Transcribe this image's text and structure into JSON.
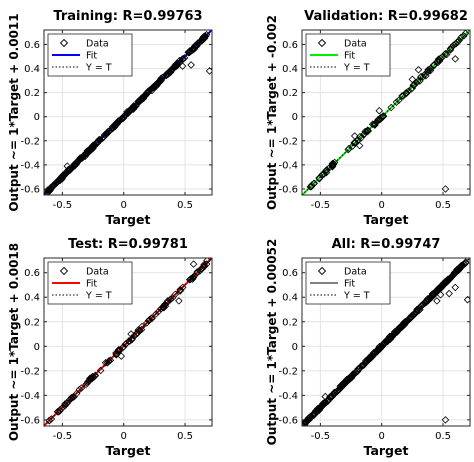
{
  "panels": [
    {
      "title": "Training: R=0.99763",
      "ylabel": "Output ~= 1*Target + 0.0011",
      "fit_color": "#0000ff",
      "fit": {
        "slope": 1,
        "intercept": 0.0011
      },
      "legend": [
        "Data",
        "Fit",
        "Y = T"
      ],
      "xlabel": "Target"
    },
    {
      "title": "Validation: R=0.99682",
      "ylabel": "Output ~= 1*Target + -0.002",
      "fit_color": "#00ee00",
      "fit": {
        "slope": 1,
        "intercept": -0.002
      },
      "legend": [
        "Data",
        "Fit",
        "Y = T"
      ],
      "xlabel": "Target"
    },
    {
      "title": "Test: R=0.99781",
      "ylabel": "Output ~= 1*Target + 0.0018",
      "fit_color": "#ff0000",
      "fit": {
        "slope": 1,
        "intercept": 0.0018
      },
      "legend": [
        "Data",
        "Fit",
        "Y = T"
      ],
      "xlabel": "Target"
    },
    {
      "title": "All: R=0.99747",
      "ylabel": "Output ~= 1*Target + 0.00052",
      "fit_color": "#808080",
      "fit": {
        "slope": 1,
        "intercept": 0.00052
      },
      "legend": [
        "Data",
        "Fit",
        "Y = T"
      ],
      "xlabel": "Target"
    }
  ],
  "chart_data": [
    {
      "type": "scatter",
      "title": "Training: R=0.99763",
      "xlabel": "Target",
      "ylabel": "Output ~= 1*Target + 0.0011",
      "xlim": [
        -0.65,
        0.72
      ],
      "ylim": [
        -0.65,
        0.72
      ],
      "xticks": [
        -0.5,
        0,
        0.5
      ],
      "yticks": [
        -0.6,
        -0.4,
        -0.2,
        0,
        0.2,
        0.4,
        0.6
      ],
      "legend_position": "top-left",
      "series": [
        {
          "name": "Data",
          "marker": "diamond",
          "density": 300,
          "outliers": [
            [
              0.48,
              0.42
            ],
            [
              0.55,
              0.43
            ],
            [
              0.7,
              0.38
            ],
            [
              -0.46,
              -0.41
            ]
          ]
        },
        {
          "name": "Fit",
          "slope": 1,
          "intercept": 0.0011,
          "color": "#0000ff"
        },
        {
          "name": "Y = T",
          "slope": 1,
          "intercept": 0,
          "style": "dotted"
        }
      ]
    },
    {
      "type": "scatter",
      "title": "Validation: R=0.99682",
      "xlabel": "Target",
      "ylabel": "Output ~= 1*Target + -0.002",
      "xlim": [
        -0.65,
        0.72
      ],
      "ylim": [
        -0.65,
        0.72
      ],
      "xticks": [
        -0.5,
        0,
        0.5
      ],
      "yticks": [
        -0.6,
        -0.4,
        -0.2,
        0,
        0.2,
        0.4,
        0.6
      ],
      "legend_position": "top-left",
      "series": [
        {
          "name": "Data",
          "marker": "diamond",
          "density": 110,
          "outliers": [
            [
              0.3,
              0.39
            ],
            [
              0.36,
              0.34
            ],
            [
              0.6,
              0.48
            ],
            [
              0.25,
              0.31
            ],
            [
              -0.02,
              0.05
            ],
            [
              -0.18,
              -0.24
            ],
            [
              -0.22,
              -0.16
            ],
            [
              0.52,
              -0.6
            ]
          ]
        },
        {
          "name": "Fit",
          "slope": 1,
          "intercept": -0.002,
          "color": "#00ee00"
        },
        {
          "name": "Y = T",
          "slope": 1,
          "intercept": 0,
          "style": "dotted"
        }
      ]
    },
    {
      "type": "scatter",
      "title": "Test: R=0.99781",
      "xlabel": "Target",
      "ylabel": "Output ~= 1*Target + 0.0018",
      "xlim": [
        -0.65,
        0.72
      ],
      "ylim": [
        -0.65,
        0.72
      ],
      "xticks": [
        -0.5,
        0,
        0.5
      ],
      "yticks": [
        -0.6,
        -0.4,
        -0.2,
        0,
        0.2,
        0.4,
        0.6
      ],
      "legend_position": "top-left",
      "series": [
        {
          "name": "Data",
          "marker": "diamond",
          "density": 110,
          "outliers": [
            [
              0.57,
              0.67
            ],
            [
              0.68,
              0.7
            ],
            [
              0.45,
              0.37
            ],
            [
              -0.12,
              -0.12
            ],
            [
              0.06,
              0.1
            ],
            [
              -0.02,
              -0.08
            ]
          ]
        },
        {
          "name": "Fit",
          "slope": 1,
          "intercept": 0.0018,
          "color": "#ff0000"
        },
        {
          "name": "Y = T",
          "slope": 1,
          "intercept": 0,
          "style": "dotted"
        }
      ]
    },
    {
      "type": "scatter",
      "title": "All: R=0.99747",
      "xlabel": "Target",
      "ylabel": "Output ~= 1*Target + 0.00052",
      "xlim": [
        -0.65,
        0.72
      ],
      "ylim": [
        -0.65,
        0.72
      ],
      "xticks": [
        -0.5,
        0,
        0.5
      ],
      "yticks": [
        -0.6,
        -0.4,
        -0.2,
        0,
        0.2,
        0.4,
        0.6
      ],
      "legend_position": "top-left",
      "series": [
        {
          "name": "Data",
          "marker": "diamond",
          "density": 380,
          "outliers": [
            [
              0.48,
              0.42
            ],
            [
              0.55,
              0.43
            ],
            [
              0.7,
              0.38
            ],
            [
              0.6,
              0.48
            ],
            [
              0.52,
              -0.6
            ],
            [
              -0.46,
              -0.41
            ],
            [
              0.45,
              0.37
            ]
          ]
        },
        {
          "name": "Fit",
          "slope": 1,
          "intercept": 0.00052,
          "color": "#808080"
        },
        {
          "name": "Y = T",
          "slope": 1,
          "intercept": 0,
          "style": "dotted"
        }
      ]
    }
  ]
}
